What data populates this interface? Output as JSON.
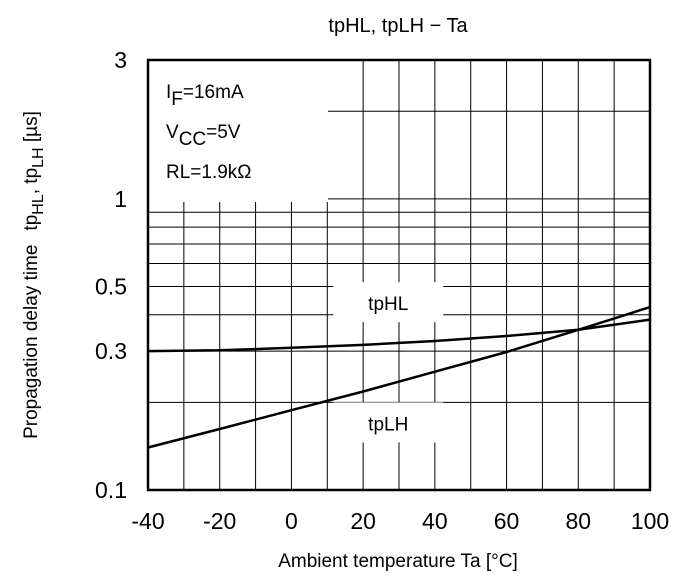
{
  "chart_data": {
    "type": "line",
    "title": "tpHL, tpLH − Ta",
    "xlabel": "Ambient temperature Ta [°C]",
    "ylabel": {
      "prefix": "Propagation delay time",
      "tp": "tp",
      "sub1": "HL",
      "sep": ", tp",
      "sub2": "LH",
      "unit": " [µs]"
    },
    "xlim": [
      -40,
      100
    ],
    "ylim": [
      0.1,
      3
    ],
    "yscale": "log",
    "grid": true,
    "xticks": [
      -40,
      -20,
      0,
      20,
      40,
      60,
      80,
      100
    ],
    "yticks": [
      {
        "value": 0.1,
        "label": "0.1"
      },
      {
        "value": 0.3,
        "label": "0.3"
      },
      {
        "value": 0.5,
        "label": "0.5"
      },
      {
        "value": 1,
        "label": "1"
      },
      {
        "value": 3,
        "label": "3"
      }
    ],
    "conditions": [
      {
        "main": "I",
        "sub": "F",
        "rest": "=16mA"
      },
      {
        "main": "V",
        "sub": "CC",
        "rest": "=5V"
      },
      {
        "main": "RL=1.9kΩ",
        "sub": "",
        "rest": ""
      }
    ],
    "series": [
      {
        "name": "tpHL",
        "x": [
          -40,
          -20,
          0,
          20,
          40,
          60,
          80,
          100
        ],
        "y": [
          0.3,
          0.302,
          0.308,
          0.315,
          0.325,
          0.338,
          0.355,
          0.385
        ]
      },
      {
        "name": "tpLH",
        "x": [
          -40,
          -20,
          0,
          20,
          40,
          60,
          80,
          100
        ],
        "y": [
          0.14,
          0.162,
          0.188,
          0.218,
          0.255,
          0.298,
          0.355,
          0.425
        ]
      }
    ]
  }
}
